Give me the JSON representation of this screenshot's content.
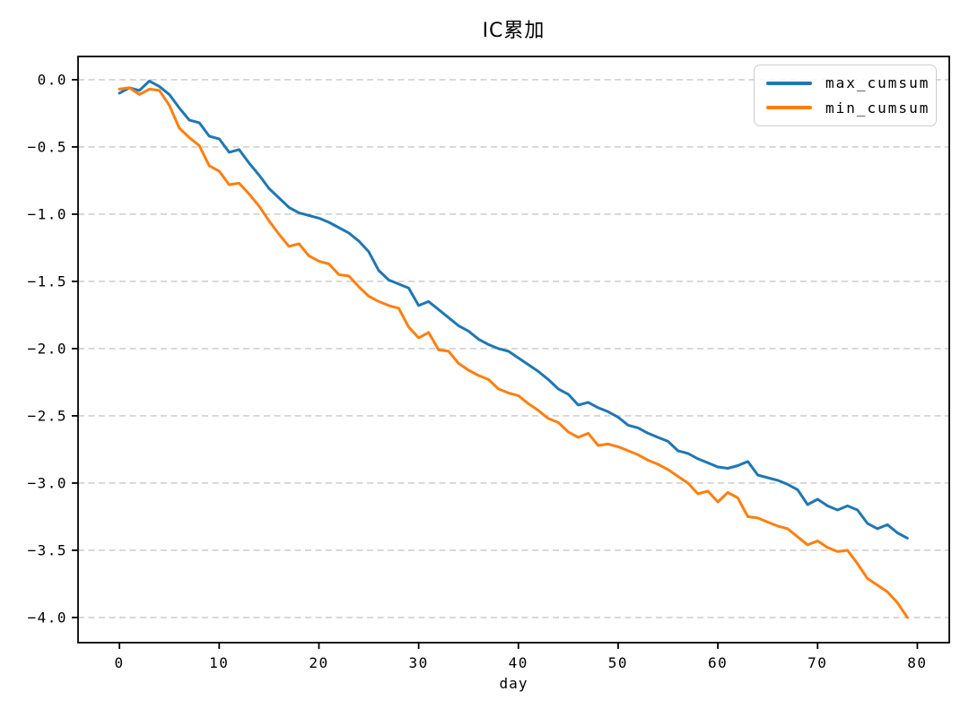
{
  "figure": {
    "background": "#ffffff"
  },
  "chart_data": {
    "type": "line",
    "title": "IC累加",
    "xlabel": "day",
    "ylabel": "",
    "grid": "horizontal, dashed",
    "grid_color": "#c8c8c8",
    "axes_color": "#000000",
    "legend_position": "upper right",
    "xlim": [
      -4.15,
      83.2
    ],
    "ylim": [
      -4.187,
      0.173
    ],
    "xticks": [
      0,
      10,
      20,
      30,
      40,
      50,
      60,
      70,
      80
    ],
    "xtick_labels": [
      "0",
      "10",
      "20",
      "30",
      "40",
      "50",
      "60",
      "70",
      "80"
    ],
    "yticks": [
      0,
      -0.5,
      -1,
      -1.5,
      -2,
      -2.5,
      -3,
      -3.5,
      -4
    ],
    "ytick_labels": [
      "0.0",
      "−0.5",
      "−1.0",
      "−1.5",
      "−2.0",
      "−2.5",
      "−3.0",
      "−3.5",
      "−4.0"
    ],
    "x": [
      0,
      1,
      2,
      3,
      4,
      5,
      6,
      7,
      8,
      9,
      10,
      11,
      12,
      13,
      14,
      15,
      16,
      17,
      18,
      19,
      20,
      21,
      22,
      23,
      24,
      25,
      26,
      27,
      28,
      29,
      30,
      31,
      32,
      33,
      34,
      35,
      36,
      37,
      38,
      39,
      40,
      41,
      42,
      43,
      44,
      45,
      46,
      47,
      48,
      49,
      50,
      51,
      52,
      53,
      54,
      55,
      56,
      57,
      58,
      59,
      60,
      61,
      62,
      63,
      64,
      65,
      66,
      67,
      68,
      69,
      70,
      71,
      72,
      73,
      74,
      75,
      76,
      77,
      78,
      79
    ],
    "series": [
      {
        "name": "max_cumsum",
        "color": "#1f77b4",
        "values": [
          -0.1,
          -0.06,
          -0.08,
          -0.01,
          -0.05,
          -0.11,
          -0.21,
          -0.3,
          -0.32,
          -0.42,
          -0.44,
          -0.54,
          -0.52,
          -0.62,
          -0.71,
          -0.81,
          -0.88,
          -0.95,
          -0.99,
          -1.01,
          -1.03,
          -1.06,
          -1.1,
          -1.14,
          -1.2,
          -1.28,
          -1.42,
          -1.49,
          -1.52,
          -1.55,
          -1.68,
          -1.65,
          -1.71,
          -1.77,
          -1.83,
          -1.87,
          -1.93,
          -1.97,
          -2.0,
          -2.02,
          -2.07,
          -2.12,
          -2.17,
          -2.23,
          -2.3,
          -2.34,
          -2.42,
          -2.4,
          -2.44,
          -2.47,
          -2.51,
          -2.57,
          -2.59,
          -2.63,
          -2.66,
          -2.69,
          -2.76,
          -2.78,
          -2.82,
          -2.85,
          -2.88,
          -2.89,
          -2.87,
          -2.84,
          -2.94,
          -2.96,
          -2.98,
          -3.01,
          -3.05,
          -3.16,
          -3.12,
          -3.17,
          -3.2,
          -3.17,
          -3.2,
          -3.3,
          -3.34,
          -3.31,
          -3.37,
          -3.41
        ]
      },
      {
        "name": "min_cumsum",
        "color": "#ff7f0e",
        "values": [
          -0.07,
          -0.06,
          -0.11,
          -0.07,
          -0.08,
          -0.19,
          -0.36,
          -0.43,
          -0.49,
          -0.64,
          -0.68,
          -0.78,
          -0.77,
          -0.85,
          -0.94,
          -1.05,
          -1.15,
          -1.24,
          -1.22,
          -1.31,
          -1.35,
          -1.37,
          -1.45,
          -1.46,
          -1.54,
          -1.61,
          -1.65,
          -1.68,
          -1.7,
          -1.84,
          -1.92,
          -1.88,
          -2.01,
          -2.02,
          -2.11,
          -2.16,
          -2.2,
          -2.23,
          -2.3,
          -2.33,
          -2.35,
          -2.41,
          -2.46,
          -2.52,
          -2.55,
          -2.62,
          -2.66,
          -2.63,
          -2.72,
          -2.71,
          -2.73,
          -2.76,
          -2.79,
          -2.83,
          -2.86,
          -2.9,
          -2.95,
          -3.0,
          -3.08,
          -3.06,
          -3.14,
          -3.07,
          -3.11,
          -3.25,
          -3.26,
          -3.29,
          -3.32,
          -3.34,
          -3.4,
          -3.46,
          -3.43,
          -3.48,
          -3.51,
          -3.5,
          -3.6,
          -3.71,
          -3.76,
          -3.81,
          -3.89,
          -4.0
        ]
      }
    ]
  }
}
